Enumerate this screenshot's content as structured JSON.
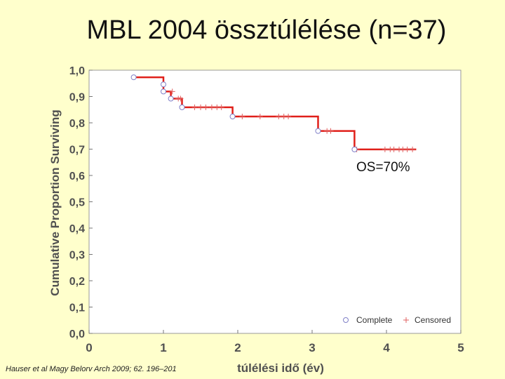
{
  "slide": {
    "title": "MBL 2004 össztúlélése (n=37)",
    "citation": "Hauser et al Magy Belorv Arch 2009; 62. 196–201"
  },
  "chart_data": {
    "type": "line",
    "subtype": "kaplan-meier",
    "xlabel": "túlélési idő (év)",
    "ylabel": "Cumulative Proportion Surviving",
    "xlim": [
      0,
      5
    ],
    "ylim": [
      0,
      1
    ],
    "x_ticks": [
      "0",
      "1",
      "2",
      "3",
      "4",
      "5"
    ],
    "y_ticks": [
      "0,0",
      "0,1",
      "0,2",
      "0,3",
      "0,4",
      "0,5",
      "0,6",
      "0,7",
      "0,8",
      "0,9",
      "1,0"
    ],
    "grid": false,
    "legend_position": "bottom-right",
    "legend": [
      {
        "label": "Complete",
        "marker": "circle"
      },
      {
        "label": "Censored",
        "marker": "plus"
      }
    ],
    "curve": [
      [
        0.6,
        0.973
      ],
      [
        1.0,
        0.973
      ],
      [
        1.0,
        0.946
      ],
      [
        1.0,
        0.919
      ],
      [
        1.1,
        0.919
      ],
      [
        1.1,
        0.892
      ],
      [
        1.25,
        0.892
      ],
      [
        1.25,
        0.859
      ],
      [
        1.93,
        0.859
      ],
      [
        1.93,
        0.824
      ],
      [
        3.08,
        0.824
      ],
      [
        3.08,
        0.769
      ],
      [
        3.57,
        0.769
      ],
      [
        3.57,
        0.699
      ],
      [
        4.4,
        0.699
      ]
    ],
    "complete_events": [
      [
        0.6,
        0.973
      ],
      [
        1.0,
        0.946
      ],
      [
        1.0,
        0.919
      ],
      [
        1.1,
        0.892
      ],
      [
        1.25,
        0.859
      ],
      [
        1.93,
        0.824
      ],
      [
        3.08,
        0.769
      ],
      [
        3.57,
        0.699
      ]
    ],
    "censored_events": [
      [
        1.12,
        0.919
      ],
      [
        1.2,
        0.892
      ],
      [
        1.23,
        0.892
      ],
      [
        1.42,
        0.859
      ],
      [
        1.5,
        0.859
      ],
      [
        1.57,
        0.859
      ],
      [
        1.65,
        0.859
      ],
      [
        1.72,
        0.859
      ],
      [
        1.78,
        0.859
      ],
      [
        2.06,
        0.824
      ],
      [
        2.3,
        0.824
      ],
      [
        2.55,
        0.824
      ],
      [
        2.62,
        0.824
      ],
      [
        2.68,
        0.824
      ],
      [
        3.2,
        0.769
      ],
      [
        3.25,
        0.769
      ],
      [
        3.6,
        0.699
      ],
      [
        3.98,
        0.699
      ],
      [
        4.05,
        0.699
      ],
      [
        4.1,
        0.699
      ],
      [
        4.17,
        0.699
      ],
      [
        4.22,
        0.699
      ],
      [
        4.28,
        0.699
      ],
      [
        4.35,
        0.699
      ]
    ],
    "annotation": "OS=70%",
    "colors": {
      "curve": "#e0201a",
      "complete_marker": "#8080c8",
      "censored_marker": "#e06060",
      "axis_text": "#505050",
      "plot_bg": "#ffffff"
    }
  }
}
